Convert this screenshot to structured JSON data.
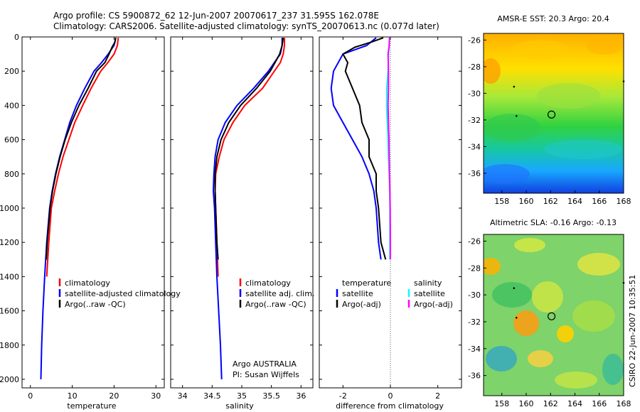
{
  "title": {
    "line1": "Argo profile: CS 5900872_62 12-Jun-2007 20070617_237 31.595S 162.078E",
    "line2": "Climatology: CARS2006. Satellite-adjusted climatology: synTS_20070613.nc (0.077d later)"
  },
  "credits": {
    "group": "Argo AUSTRALIA",
    "pi": "PI: Susan Wijffels",
    "stamp": "CSIRO 22-Jun-2007 10:35:51"
  },
  "colors": {
    "climatology": "#ff0000",
    "satellite": "#0000ff",
    "argo": "#000000",
    "salinity_satellite": "#00ffff",
    "salinity_argo": "#ff00ff"
  },
  "chart_data": [
    {
      "type": "line",
      "name": "temperature-profile",
      "xlabel": "temperature",
      "ylabel": "",
      "xlim": [
        -2,
        32
      ],
      "ylim": [
        2050,
        0
      ],
      "xticks": [
        0,
        10,
        20,
        30
      ],
      "yticks": [
        0,
        200,
        400,
        600,
        800,
        1000,
        1200,
        1400,
        1600,
        1800,
        2000
      ],
      "legend": [
        "climatology",
        "satellite-adjusted climatology",
        "Argo(..raw -QC)"
      ],
      "legend_placement": "lower-right",
      "series": [
        {
          "name": "climatology",
          "color": "#ff0000",
          "points": [
            [
              21.0,
              5
            ],
            [
              20.8,
              50
            ],
            [
              20.0,
              100
            ],
            [
              18.5,
              150
            ],
            [
              16.8,
              200
            ],
            [
              14.5,
              300
            ],
            [
              12.5,
              400
            ],
            [
              10.6,
              500
            ],
            [
              9.2,
              600
            ],
            [
              7.8,
              700
            ],
            [
              6.7,
              800
            ],
            [
              5.8,
              900
            ],
            [
              5.0,
              1000
            ],
            [
              4.4,
              1200
            ],
            [
              3.9,
              1400
            ]
          ]
        },
        {
          "name": "satellite-adjusted climatology",
          "color": "#0000ff",
          "points": [
            [
              20.4,
              5
            ],
            [
              20.0,
              50
            ],
            [
              18.6,
              100
            ],
            [
              17.0,
              150
            ],
            [
              15.2,
              200
            ],
            [
              13.0,
              300
            ],
            [
              11.0,
              400
            ],
            [
              9.4,
              500
            ],
            [
              8.2,
              600
            ],
            [
              7.0,
              700
            ],
            [
              6.0,
              800
            ],
            [
              5.2,
              900
            ],
            [
              4.6,
              1000
            ],
            [
              3.9,
              1200
            ],
            [
              3.4,
              1400
            ],
            [
              3.0,
              1600
            ],
            [
              2.7,
              1800
            ],
            [
              2.5,
              2000
            ]
          ]
        },
        {
          "name": "Argo(..raw -QC)",
          "color": "#000000",
          "points": [
            [
              20.4,
              5
            ],
            [
              20.2,
              30
            ],
            [
              19.5,
              60
            ],
            [
              18.8,
              100
            ],
            [
              17.8,
              150
            ],
            [
              15.8,
              200
            ],
            [
              13.8,
              300
            ],
            [
              11.6,
              400
            ],
            [
              9.8,
              500
            ],
            [
              8.3,
              600
            ],
            [
              7.1,
              700
            ],
            [
              6.1,
              800
            ],
            [
              5.3,
              900
            ],
            [
              4.7,
              1000
            ],
            [
              4.0,
              1200
            ],
            [
              3.8,
              1300
            ]
          ]
        }
      ]
    },
    {
      "type": "line",
      "name": "salinity-profile",
      "xlabel": "salinity",
      "xlim": [
        33.8,
        36.2
      ],
      "ylim": [
        2050,
        0
      ],
      "xticks": [
        34,
        34.5,
        35,
        35.5,
        36
      ],
      "xticklabels": [
        "34",
        "34.5",
        "35",
        "35.5",
        "36"
      ],
      "legend": [
        "climatology",
        "satellite adj. clim.",
        "Argo(..raw -QC)"
      ],
      "legend_placement": "lower-right",
      "series": [
        {
          "name": "climatology",
          "color": "#ff0000",
          "points": [
            [
              35.72,
              5
            ],
            [
              35.72,
              50
            ],
            [
              35.7,
              100
            ],
            [
              35.65,
              150
            ],
            [
              35.55,
              200
            ],
            [
              35.35,
              300
            ],
            [
              35.05,
              400
            ],
            [
              34.85,
              500
            ],
            [
              34.7,
              600
            ],
            [
              34.62,
              700
            ],
            [
              34.56,
              800
            ],
            [
              34.55,
              900
            ],
            [
              34.56,
              1000
            ],
            [
              34.58,
              1200
            ],
            [
              34.6,
              1400
            ]
          ]
        },
        {
          "name": "satellite adj. clim.",
          "color": "#0000ff",
          "points": [
            [
              35.68,
              5
            ],
            [
              35.68,
              50
            ],
            [
              35.65,
              100
            ],
            [
              35.55,
              150
            ],
            [
              35.45,
              200
            ],
            [
              35.2,
              300
            ],
            [
              34.92,
              400
            ],
            [
              34.72,
              500
            ],
            [
              34.6,
              600
            ],
            [
              34.55,
              700
            ],
            [
              34.53,
              800
            ],
            [
              34.52,
              900
            ],
            [
              34.54,
              1000
            ],
            [
              34.56,
              1200
            ],
            [
              34.58,
              1400
            ],
            [
              34.61,
              1600
            ],
            [
              34.64,
              1800
            ],
            [
              34.66,
              2000
            ]
          ]
        },
        {
          "name": "Argo(..raw -QC)",
          "color": "#000000",
          "points": [
            [
              35.7,
              5
            ],
            [
              35.68,
              50
            ],
            [
              35.64,
              100
            ],
            [
              35.56,
              150
            ],
            [
              35.48,
              200
            ],
            [
              35.25,
              300
            ],
            [
              34.98,
              400
            ],
            [
              34.78,
              500
            ],
            [
              34.65,
              600
            ],
            [
              34.58,
              700
            ],
            [
              34.55,
              800
            ],
            [
              34.55,
              900
            ],
            [
              34.56,
              1000
            ],
            [
              34.58,
              1200
            ],
            [
              34.6,
              1300
            ]
          ]
        }
      ]
    },
    {
      "type": "line",
      "name": "difference-profile",
      "xlabel": "difference from climatology",
      "xlim": [
        -3.0,
        3.0
      ],
      "ylim": [
        2050,
        0
      ],
      "xticks": [
        -2,
        0,
        2
      ],
      "legend_headers": [
        "temperature",
        "salinity"
      ],
      "legend": [
        "satellite",
        "Argo(-adj)",
        "satellite",
        "Argo(-adj)"
      ],
      "legend_placement": "lower-right",
      "series": [
        {
          "name": "temperature satellite",
          "color": "#0000ff",
          "points": [
            [
              -0.6,
              5
            ],
            [
              -1.0,
              50
            ],
            [
              -2.0,
              100
            ],
            [
              -2.4,
              200
            ],
            [
              -2.5,
              300
            ],
            [
              -2.4,
              400
            ],
            [
              -2.0,
              500
            ],
            [
              -1.6,
              600
            ],
            [
              -1.2,
              700
            ],
            [
              -0.9,
              800
            ],
            [
              -0.7,
              900
            ],
            [
              -0.6,
              1000
            ],
            [
              -0.5,
              1200
            ],
            [
              -0.4,
              1300
            ]
          ]
        },
        {
          "name": "temperature Argo(-adj)",
          "color": "#000000",
          "points": [
            [
              -0.3,
              5
            ],
            [
              -0.8,
              30
            ],
            [
              -1.5,
              60
            ],
            [
              -2.0,
              100
            ],
            [
              -1.8,
              150
            ],
            [
              -1.9,
              200
            ],
            [
              -1.6,
              300
            ],
            [
              -1.3,
              400
            ],
            [
              -1.2,
              500
            ],
            [
              -0.9,
              600
            ],
            [
              -0.9,
              700
            ],
            [
              -0.6,
              800
            ],
            [
              -0.6,
              900
            ],
            [
              -0.5,
              1000
            ],
            [
              -0.4,
              1200
            ],
            [
              -0.2,
              1300
            ]
          ]
        },
        {
          "name": "salinity satellite",
          "color": "#00ffff",
          "points": [
            [
              -0.04,
              5
            ],
            [
              -0.05,
              50
            ],
            [
              -0.08,
              100
            ],
            [
              -0.1,
              200
            ],
            [
              -0.15,
              300
            ],
            [
              -0.16,
              400
            ],
            [
              -0.13,
              500
            ],
            [
              -0.1,
              600
            ],
            [
              -0.08,
              700
            ],
            [
              -0.05,
              800
            ],
            [
              -0.03,
              900
            ],
            [
              -0.02,
              1000
            ],
            [
              -0.02,
              1200
            ],
            [
              -0.02,
              1300
            ]
          ]
        },
        {
          "name": "salinity Argo(-adj)",
          "color": "#ff00ff",
          "points": [
            [
              -0.04,
              5
            ],
            [
              -0.05,
              50
            ],
            [
              -0.1,
              100
            ],
            [
              -0.08,
              200
            ],
            [
              -0.08,
              300
            ],
            [
              -0.1,
              400
            ],
            [
              -0.08,
              500
            ],
            [
              -0.06,
              600
            ],
            [
              -0.05,
              700
            ],
            [
              -0.04,
              800
            ],
            [
              -0.02,
              900
            ],
            [
              -0.01,
              1000
            ],
            [
              0.0,
              1200
            ],
            [
              0.0,
              1300
            ]
          ]
        }
      ]
    },
    {
      "type": "heatmap",
      "name": "sst-map",
      "title": "AMSR-E SST: 20.3 Argo: 20.4",
      "xlim": [
        156.5,
        168
      ],
      "ylim": [
        -37.5,
        -25.5
      ],
      "xticks": [
        158,
        160,
        162,
        164,
        166,
        168
      ],
      "yticks": [
        -26,
        -28,
        -30,
        -32,
        -34,
        -36
      ],
      "argo_position": {
        "lon": 162.078,
        "lat": -31.595
      },
      "track_points": [
        [
          159.0,
          -29.5
        ],
        [
          159.2,
          -31.7
        ],
        [
          168.0,
          -29.1
        ]
      ]
    },
    {
      "type": "heatmap",
      "name": "sla-map",
      "title": "Altimetric SLA: -0.16 Argo: -0.13",
      "xlim": [
        156.5,
        168
      ],
      "ylim": [
        -37.5,
        -25.5
      ],
      "xticks": [
        158,
        160,
        162,
        164,
        166,
        168
      ],
      "yticks": [
        -26,
        -28,
        -30,
        -32,
        -34,
        -36
      ],
      "argo_position": {
        "lon": 162.078,
        "lat": -31.595
      },
      "track_points": [
        [
          159.0,
          -29.5
        ],
        [
          159.2,
          -31.7
        ],
        [
          168.0,
          -29.1
        ]
      ]
    }
  ]
}
